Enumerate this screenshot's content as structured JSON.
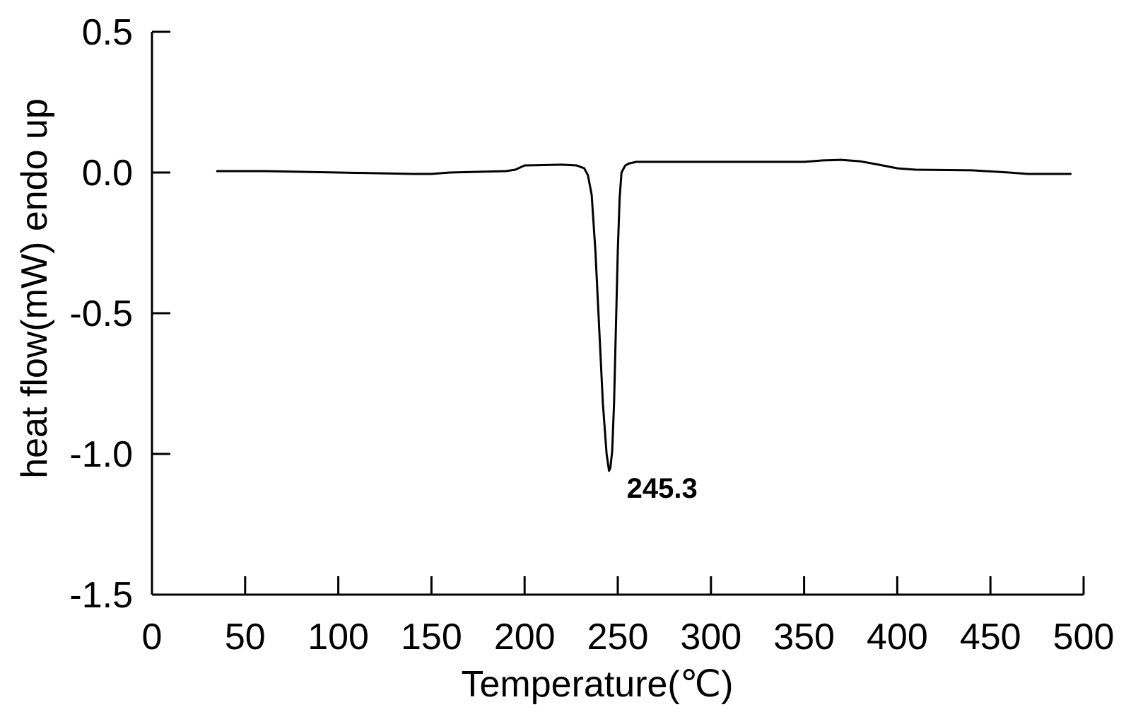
{
  "chart_data": {
    "type": "line",
    "title": "",
    "xlabel": "Temperature(℃)",
    "ylabel": "heat flow(mW) endo up",
    "xlim": [
      0,
      500
    ],
    "ylim": [
      -1.5,
      0.5
    ],
    "xticks": [
      "0",
      "50",
      "100",
      "150",
      "200",
      "250",
      "300",
      "350",
      "400",
      "450",
      "500"
    ],
    "xtick_values": [
      0,
      50,
      100,
      150,
      200,
      250,
      300,
      350,
      400,
      450,
      500
    ],
    "yticks": [
      "0.5",
      "0.0",
      "-0.5",
      "-1.0",
      "-1.5"
    ],
    "ytick_values": [
      0.5,
      0.0,
      -0.5,
      -1.0,
      -1.5
    ],
    "grid": false,
    "line_color": "#000000",
    "series": [
      {
        "x": [
          35,
          60,
          100,
          140,
          150,
          160,
          190,
          195,
          200,
          220,
          228,
          232,
          234,
          236,
          238,
          240,
          242,
          244,
          245.3,
          246,
          247,
          248,
          249,
          250,
          251,
          252,
          254,
          256,
          260,
          280,
          320,
          350,
          360,
          370,
          380,
          390,
          400,
          410,
          440,
          460,
          470,
          493
        ],
        "y": [
          0.005,
          0.005,
          0.0,
          -0.005,
          -0.005,
          0.0,
          0.005,
          0.01,
          0.025,
          0.028,
          0.025,
          0.015,
          -0.01,
          -0.08,
          -0.28,
          -0.55,
          -0.82,
          -1.0,
          -1.06,
          -1.05,
          -0.99,
          -0.82,
          -0.55,
          -0.28,
          -0.09,
          0.0,
          0.025,
          0.032,
          0.038,
          0.038,
          0.038,
          0.038,
          0.043,
          0.045,
          0.04,
          0.028,
          0.015,
          0.01,
          0.008,
          0.0,
          -0.005,
          -0.005
        ]
      }
    ],
    "annotations": [
      {
        "text": "245.3",
        "x": 245.3,
        "y": -1.06
      }
    ]
  }
}
